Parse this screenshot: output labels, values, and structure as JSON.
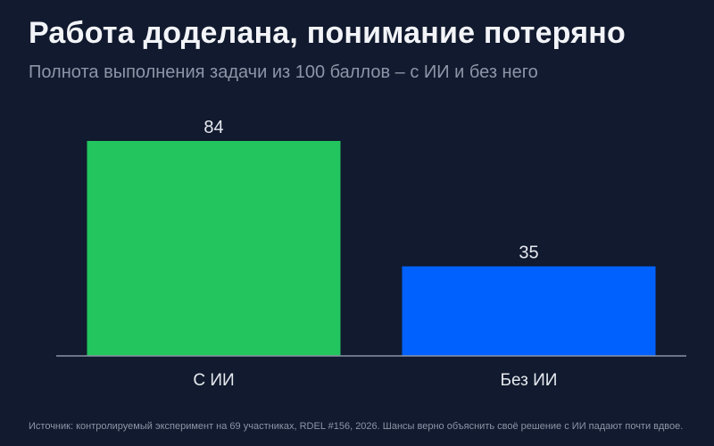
{
  "title": "Работа доделана, понимание потеряно",
  "subtitle": "Полнота выполнения задачи из 100 баллов – с ИИ и без него",
  "source": "Источник: контролируемый эксперимент на 69 участниках, RDEL #156, 2026. Шансы верно объяснить своё решение с ИИ падают почти вдвое.",
  "colors": {
    "background": "#111a2e",
    "baseline": "#8a93a6",
    "label_text": "#e6e9ef"
  },
  "chart_data": {
    "type": "bar",
    "categories": [
      "С ИИ",
      "Без ИИ"
    ],
    "values": [
      84,
      35
    ],
    "colors": [
      "#22c55e",
      "#0061ff"
    ],
    "ylim": [
      0,
      84
    ],
    "grid": false,
    "legend": "none"
  }
}
